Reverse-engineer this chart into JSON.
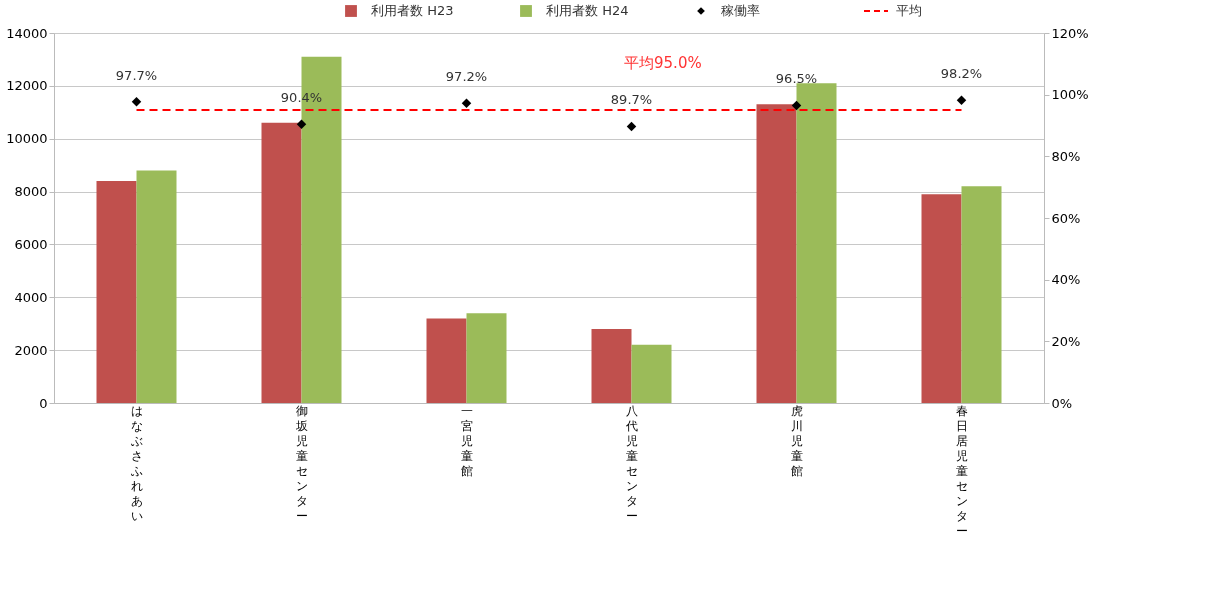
{
  "chart_data": {
    "type": "bar",
    "categories": [
      "はなぶさふれあい",
      "御坂児童センター",
      "一宮児童館",
      "八代児童センター",
      "虎川児童館",
      "春日居児童センター"
    ],
    "series": [
      {
        "name": "利用者数 H23",
        "color": "#c0504d",
        "values": [
          8400,
          10600,
          3200,
          2800,
          11300,
          7900
        ]
      },
      {
        "name": "利用者数 H24",
        "color": "#9bbb59",
        "values": [
          8800,
          13100,
          3400,
          2200,
          12100,
          8200
        ]
      },
      {
        "name": "稼働率",
        "type": "scatter",
        "axis": "y2",
        "marker": "diamond",
        "color": "#000000",
        "values": [
          97.7,
          90.4,
          97.2,
          89.7,
          96.5,
          98.2
        ],
        "value_labels": [
          "97.7%",
          "90.4%",
          "97.2%",
          "89.7%",
          "96.5%",
          "98.2%"
        ]
      },
      {
        "name": "平均",
        "type": "line",
        "axis": "y2",
        "line_style": "dashed",
        "color": "#ff0000",
        "values": [
          95.0,
          95.0,
          95.0,
          95.0,
          95.0,
          95.0
        ]
      }
    ],
    "ylim": [
      0,
      14000
    ],
    "yticks": [
      0,
      2000,
      4000,
      6000,
      8000,
      10000,
      12000,
      14000
    ],
    "y2lim": [
      0,
      120
    ],
    "y2ticks": [
      {
        "value": 0,
        "label": "0%"
      },
      {
        "value": 20,
        "label": "20%"
      },
      {
        "value": 40,
        "label": "40%"
      },
      {
        "value": 60,
        "label": "60%"
      },
      {
        "value": 80,
        "label": "80%"
      },
      {
        "value": 100,
        "label": "100%"
      },
      {
        "value": 120,
        "label": "120%"
      }
    ],
    "annotations": [
      "平均95.0%"
    ],
    "grid": "y",
    "legend": "top"
  }
}
